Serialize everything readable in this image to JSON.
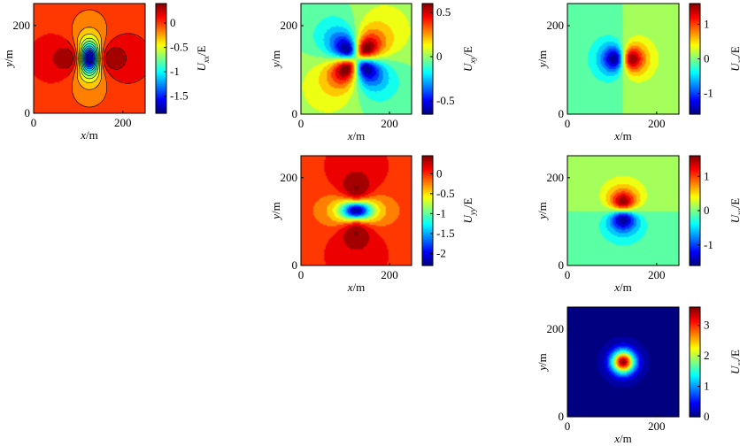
{
  "chart_data": [
    {
      "id": "xx",
      "type": "heatmap",
      "component": "xx",
      "xlabel": "x/m",
      "ylabel": "y/m",
      "xlim": [
        0,
        250
      ],
      "ylim": [
        0,
        250
      ],
      "xticks": [
        "0",
        "200"
      ],
      "yticks": [
        "0",
        "200"
      ],
      "colorbar": {
        "label": "U_xx/E",
        "sub": "xx",
        "range": [
          -1.85,
          0.4
        ],
        "ticks": [
          "0",
          "-0.5",
          "-1",
          "-1.5"
        ],
        "tick_values": [
          0,
          -0.5,
          -1,
          -1.5
        ]
      }
    },
    {
      "id": "xy",
      "type": "heatmap",
      "component": "xy",
      "xlabel": "x/m",
      "ylabel": "y/m",
      "xlim": [
        0,
        250
      ],
      "ylim": [
        0,
        250
      ],
      "xticks": [
        "0",
        "200"
      ],
      "yticks": [
        "0",
        "200"
      ],
      "colorbar": {
        "label": "U_xy/E",
        "sub": "xy",
        "range": [
          -0.65,
          0.6
        ],
        "ticks": [
          "0.5",
          "0",
          "-0.5"
        ],
        "tick_values": [
          0.5,
          0,
          -0.5
        ]
      }
    },
    {
      "id": "xz",
      "type": "heatmap",
      "component": "xz",
      "xlabel": "x/m",
      "ylabel": "y/m",
      "xlim": [
        0,
        250
      ],
      "ylim": [
        0,
        250
      ],
      "xticks": [
        "0",
        "200"
      ],
      "yticks": [
        "0",
        "200"
      ],
      "colorbar": {
        "label": "U_xz/E",
        "sub": "xz",
        "range": [
          -1.6,
          1.6
        ],
        "ticks": [
          "1",
          "0",
          "-1"
        ],
        "tick_values": [
          1,
          0,
          -1
        ]
      }
    },
    {
      "id": "yy",
      "type": "heatmap",
      "component": "yy",
      "xlabel": "x/m",
      "ylabel": "y/m",
      "xlim": [
        0,
        250
      ],
      "ylim": [
        0,
        250
      ],
      "xticks": [
        "0",
        "200"
      ],
      "yticks": [
        "0",
        "200"
      ],
      "colorbar": {
        "label": "U_yy/E",
        "sub": "yy",
        "range": [
          -2.3,
          0.45
        ],
        "ticks": [
          "0",
          "-0.5",
          "-1",
          "-1.5",
          "-2"
        ],
        "tick_values": [
          0,
          -0.5,
          -1,
          -1.5,
          -2
        ]
      }
    },
    {
      "id": "yz",
      "type": "heatmap",
      "component": "yz",
      "xlabel": "x/m",
      "ylabel": "y/m",
      "xlim": [
        0,
        250
      ],
      "ylim": [
        0,
        250
      ],
      "xticks": [
        "0",
        "200"
      ],
      "yticks": [
        "0",
        "200"
      ],
      "colorbar": {
        "label": "U_yz/E",
        "sub": "yz",
        "range": [
          -1.6,
          1.6
        ],
        "ticks": [
          "1",
          "0",
          "-1"
        ],
        "tick_values": [
          1,
          0,
          -1
        ]
      }
    },
    {
      "id": "zz",
      "type": "heatmap",
      "component": "zz",
      "xlabel": "x/m",
      "ylabel": "y/m",
      "xlim": [
        0,
        250
      ],
      "ylim": [
        0,
        250
      ],
      "xticks": [
        "0",
        "200"
      ],
      "yticks": [
        "0",
        "200"
      ],
      "colorbar": {
        "label": "U_zz/E",
        "sub": "zz",
        "range": [
          0,
          3.6
        ],
        "ticks": [
          "3",
          "2",
          "1",
          "0"
        ],
        "tick_values": [
          3,
          2,
          1,
          0
        ]
      }
    }
  ]
}
